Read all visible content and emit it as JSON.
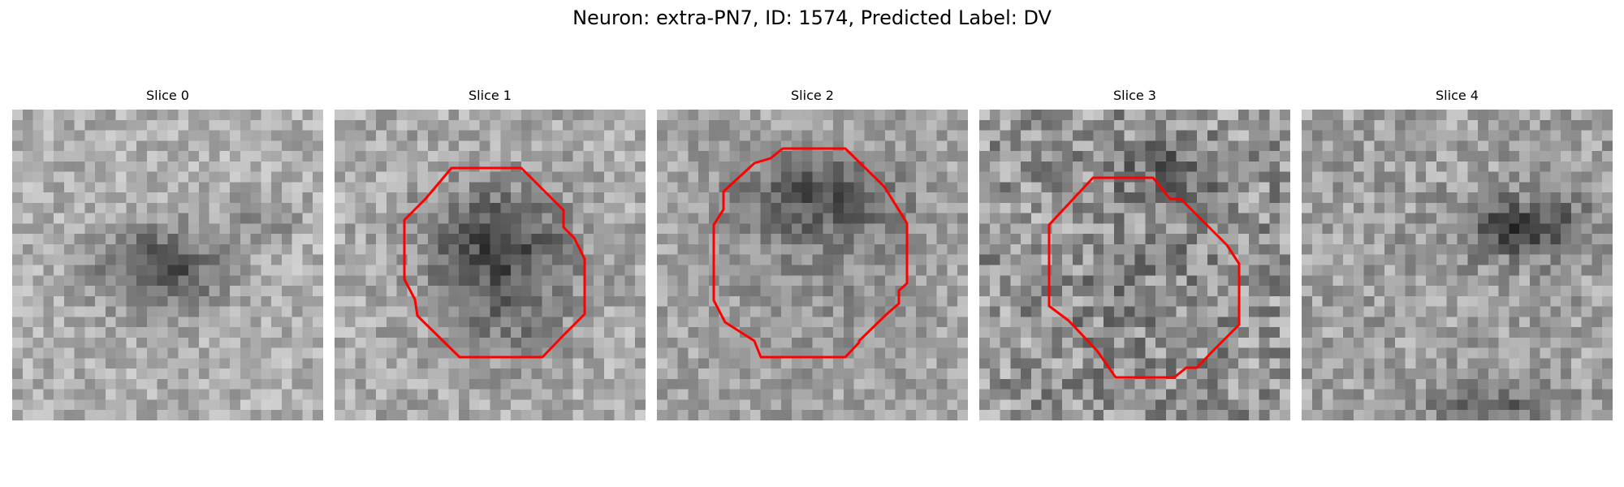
{
  "title": "Neuron: extra-PN7, ID: 1574, Predicted Label: DV",
  "panels": [
    {
      "label": "Slice 0",
      "has_contour": false,
      "image_content": "grayscale pixelated patch with small dark blob near center"
    },
    {
      "label": "Slice 1",
      "has_contour": true,
      "contour_color": "#ff0000",
      "image_content": "grayscale pixelated patch with large dark cell body outlined in red"
    },
    {
      "label": "Slice 2",
      "has_contour": true,
      "contour_color": "#ff0000",
      "image_content": "grayscale pixelated patch with large roughly circular cell outlined in red"
    },
    {
      "label": "Slice 3",
      "has_contour": true,
      "contour_color": "#ff0000",
      "image_content": "grayscale noisy pixelated patch with cell outlined in red"
    },
    {
      "label": "Slice 4",
      "has_contour": false,
      "image_content": "grayscale pixelated patch with dark region upper right"
    }
  ]
}
